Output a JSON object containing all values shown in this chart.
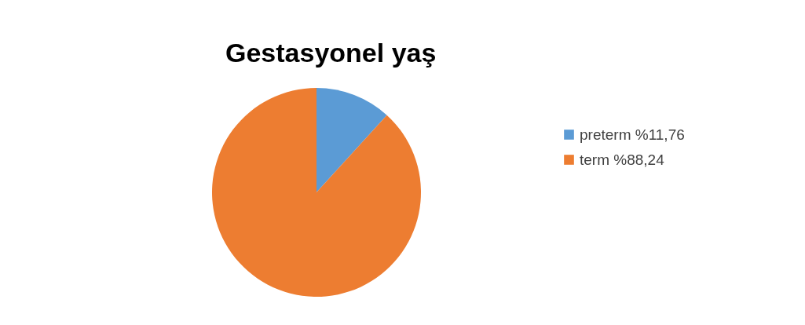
{
  "chart_data": {
    "type": "pie",
    "title": "Gestasyonel yaş",
    "categories": [
      "preterm %11,76",
      "term %88,24"
    ],
    "values": [
      11.76,
      88.24
    ],
    "colors": [
      "#5b9bd5",
      "#ed7d31"
    ],
    "legend": "right"
  }
}
